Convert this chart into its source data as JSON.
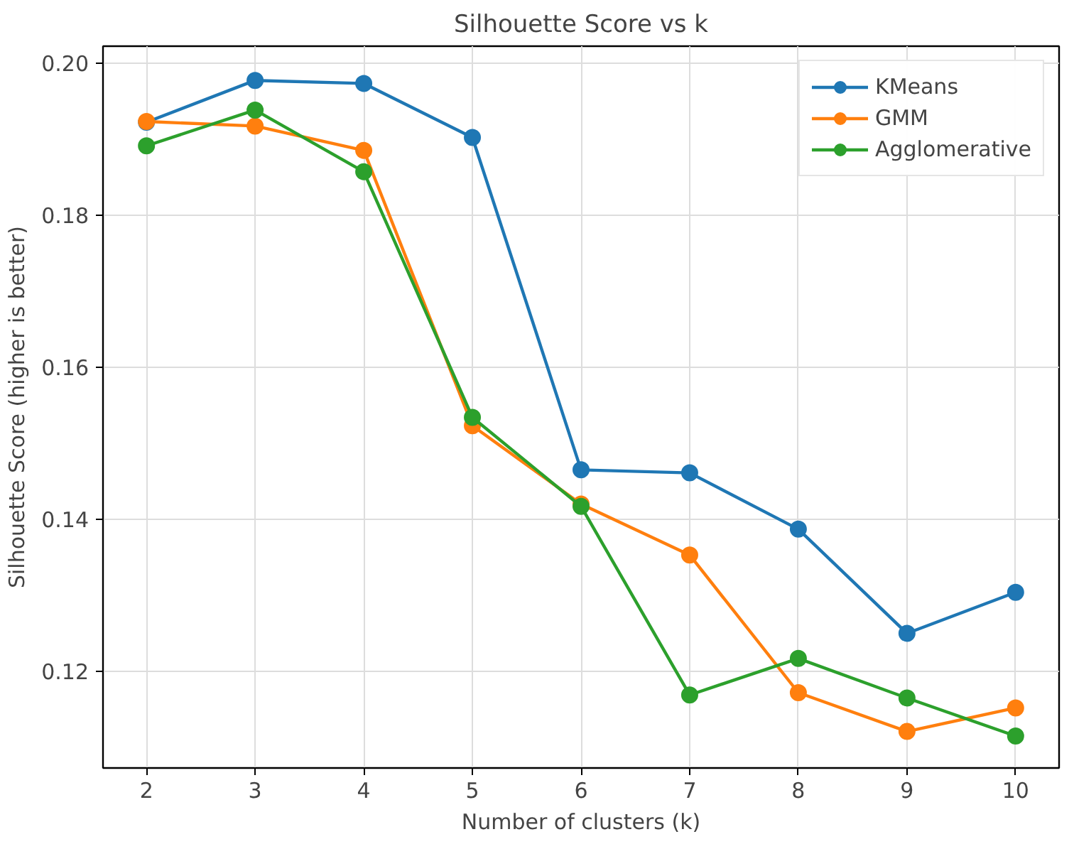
{
  "chart_data": {
    "type": "line",
    "title": "Silhouette Score vs k",
    "xlabel": "Number of clusters (k)",
    "ylabel": "Silhouette Score (higher is better)",
    "x": [
      2,
      3,
      4,
      5,
      6,
      7,
      8,
      9,
      10
    ],
    "series": [
      {
        "name": "KMeans",
        "color": "#1f77b4",
        "values": [
          0.1922,
          0.1977,
          0.1973,
          0.1902,
          0.1465,
          0.1461,
          0.1387,
          0.125,
          0.1304
        ]
      },
      {
        "name": "GMM",
        "color": "#ff7f0e",
        "values": [
          0.1923,
          0.1917,
          0.1885,
          0.1523,
          0.142,
          0.1353,
          0.1172,
          0.1121,
          0.1152
        ]
      },
      {
        "name": "Agglomerative",
        "color": "#2ca02c",
        "values": [
          0.1891,
          0.1938,
          0.1857,
          0.1534,
          0.1417,
          0.1169,
          0.1217,
          0.1165,
          0.1115
        ]
      }
    ],
    "xlim": [
      1.6,
      10.4
    ],
    "ylim": [
      0.1073,
      0.2022
    ],
    "xticks": [
      2,
      3,
      4,
      5,
      6,
      7,
      8,
      9,
      10
    ],
    "yticks": [
      {
        "value": 0.12,
        "label": "0.12"
      },
      {
        "value": 0.14,
        "label": "0.14"
      },
      {
        "value": 0.16,
        "label": "0.16"
      },
      {
        "value": 0.18,
        "label": "0.18"
      },
      {
        "value": 0.2,
        "label": "0.20"
      }
    ],
    "grid": true,
    "legend": "top right",
    "marker": "circle",
    "line_style": "solid"
  }
}
